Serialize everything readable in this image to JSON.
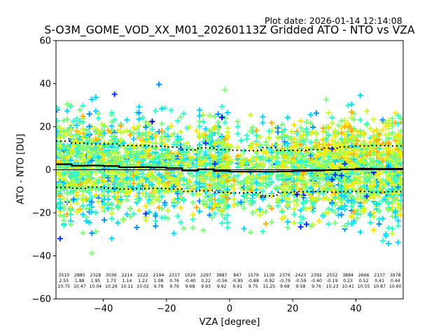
{
  "plot_date_label": "Plot date: 2026-01-14 12:14:08",
  "chart_data": {
    "type": "scatter",
    "title": "S-O3M_GOME_VOD_XX_M01_20260113Z Gridded ATO - NTO vs VZA",
    "xlabel": "VZA [degree]",
    "ylabel": "ATO - NTO [DU]",
    "xlim": [
      -55,
      55
    ],
    "ylim": [
      -60,
      60
    ],
    "xticks": [
      -40,
      -20,
      0,
      20,
      40
    ],
    "yticks": [
      -60,
      -40,
      -20,
      0,
      20,
      40,
      60
    ],
    "xtick_labels": [
      "−40",
      "−20",
      "0",
      "20",
      "40"
    ],
    "ytick_labels": [
      "−60",
      "−40",
      "−20",
      "0",
      "20",
      "40",
      "60"
    ],
    "grid": false,
    "marker": "+",
    "colormap": "jet",
    "colormap_colors": [
      "#0000c8",
      "#0030ff",
      "#0090ff",
      "#00d8ff",
      "#2cffca",
      "#7dff7a",
      "#caff2c",
      "#ffe600",
      "#ffb000"
    ],
    "zero_line": 0,
    "bin_width": 5,
    "bin_centers": [
      -52.5,
      -47.5,
      -42.5,
      -37.5,
      -32.5,
      -27.5,
      -22.5,
      -17.5,
      -12.5,
      -7.5,
      -2.5,
      2.5,
      7.5,
      12.5,
      17.5,
      22.5,
      27.5,
      32.5,
      37.5,
      42.5,
      47.5,
      52.5
    ],
    "bin_counts": [
      "3510",
      "2885",
      "2328",
      "3036",
      "2214",
      "2222",
      "2194",
      "2317",
      "1020",
      "2297",
      "3887",
      "847",
      "1579",
      "1139",
      "2376",
      "2423",
      "2392",
      "2552",
      "3884",
      "2666",
      "2137",
      "3978"
    ],
    "bin_means": [
      "2.55",
      "1.88",
      "1.95",
      "1.73",
      "1.14",
      "1.22",
      "1.08",
      "0.76",
      "-0.40",
      "0.22",
      "-0.56",
      "-0.85",
      "-0.88",
      "-0.92",
      "-0.79",
      "-0.59",
      "-0.40",
      "-0.19",
      "0.23",
      "0.52",
      "0.41",
      "0.44"
    ],
    "bin_stds": [
      "10.75",
      "10.47",
      "10.04",
      "10.26",
      "10.11",
      "10.02",
      "9.78",
      "9.76",
      "9.68",
      "9.93",
      "9.92",
      "9.91",
      "9.75",
      "11.25",
      "9.68",
      "9.58",
      "9.76",
      "10.23",
      "10.41",
      "10.55",
      "10.87",
      "10.60"
    ],
    "series": [
      {
        "name": "bin mean",
        "style": "solid black step line"
      },
      {
        "name": "bin mean + std",
        "style": "dotted black step line"
      },
      {
        "name": "bin mean - std",
        "style": "dotted black step line"
      }
    ]
  }
}
